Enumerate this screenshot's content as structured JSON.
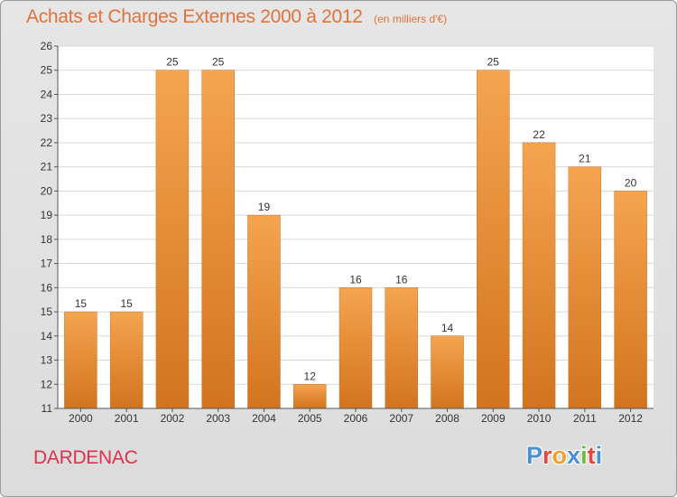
{
  "title": "Achats et Charges Externes 2000 à 2012",
  "subtitle": "(en milliers d'€)",
  "commune": "DARDENAC",
  "logo": {
    "text": "Proxiti",
    "letter_colors": [
      "#4a90d9",
      "#e8453c",
      "#f2a12e",
      "#4a90d9",
      "#6bbf3a",
      "#e8453c",
      "#4a90d9"
    ]
  },
  "colors": {
    "bar_light": "#f5a450",
    "bar_dark": "#d2741f",
    "title": "#e0733d",
    "commune": "#e0304a"
  },
  "chart_data": {
    "type": "bar",
    "title": "Achats et Charges Externes 2000 à 2012",
    "subtitle": "(en milliers d'€)",
    "xlabel": "",
    "ylabel": "",
    "categories": [
      "2000",
      "2001",
      "2002",
      "2003",
      "2004",
      "2005",
      "2006",
      "2007",
      "2008",
      "2009",
      "2010",
      "2011",
      "2012"
    ],
    "values": [
      15,
      15,
      25,
      25,
      19,
      12,
      16,
      16,
      14,
      25,
      22,
      21,
      20
    ],
    "ylim": [
      11,
      26
    ],
    "yticks": [
      11,
      12,
      13,
      14,
      15,
      16,
      17,
      18,
      19,
      20,
      21,
      22,
      23,
      24,
      25,
      26
    ],
    "grid": true,
    "data_labels": true
  }
}
